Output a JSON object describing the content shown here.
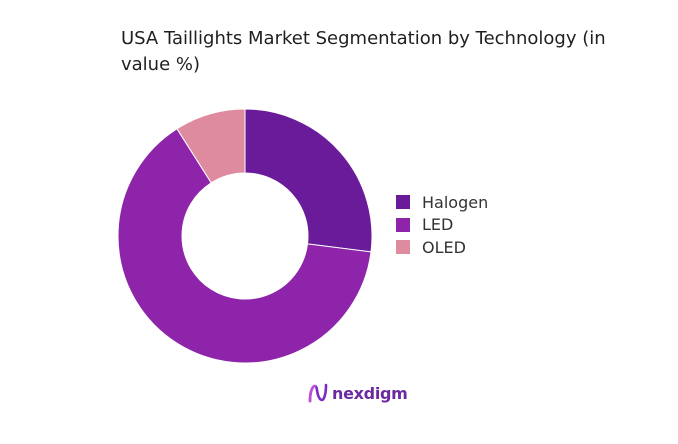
{
  "chart_data": {
    "type": "pie",
    "title": "USA Taillights Market Segmentation by Technology (in value %)",
    "categories": [
      "Halogen",
      "LED",
      "OLED"
    ],
    "values": [
      27,
      64,
      9
    ],
    "colors": [
      "#6a1b9a",
      "#8e24aa",
      "#de8a9f"
    ],
    "donut": true,
    "legend_position": "right"
  },
  "brand": {
    "name": "nexdigm",
    "color": "#6a2aa0"
  }
}
